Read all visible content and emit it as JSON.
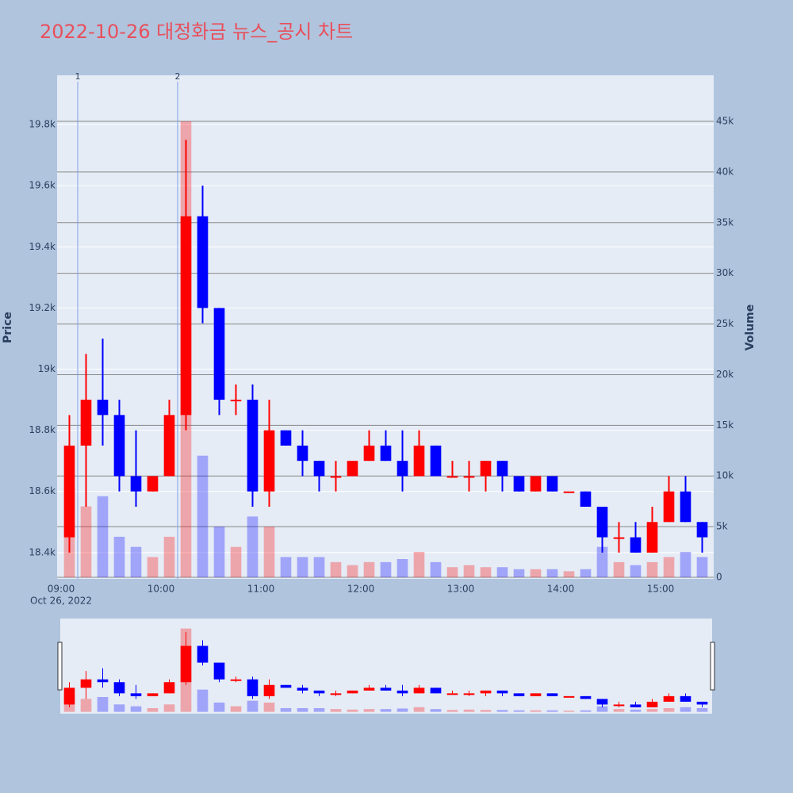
{
  "chart_data": {
    "type": "candlestick",
    "title": "2022-10-26 대정화금 뉴스_공시 차트",
    "x": [
      "09:00",
      "09:10",
      "09:20",
      "09:30",
      "09:40",
      "09:50",
      "10:00",
      "10:10",
      "10:20",
      "10:30",
      "10:40",
      "10:50",
      "11:00",
      "11:10",
      "11:20",
      "11:30",
      "11:40",
      "11:50",
      "12:00",
      "12:10",
      "12:20",
      "12:30",
      "12:40",
      "12:50",
      "13:00",
      "13:10",
      "13:20",
      "13:30",
      "13:40",
      "13:50",
      "14:00",
      "14:10",
      "14:20",
      "14:30",
      "14:40",
      "14:50",
      "15:00",
      "15:10",
      "15:20"
    ],
    "open": [
      18450,
      18750,
      18900,
      18850,
      18650,
      18600,
      18650,
      18850,
      19500,
      19200,
      18900,
      18900,
      18600,
      18800,
      18750,
      18700,
      18650,
      18650,
      18700,
      18750,
      18700,
      18650,
      18750,
      18650,
      18650,
      18650,
      18700,
      18650,
      18600,
      18650,
      18600,
      18600,
      18550,
      18450,
      18450,
      18400,
      18500,
      18600,
      18500
    ],
    "high": [
      18850,
      19050,
      19100,
      18900,
      18800,
      18650,
      18900,
      19750,
      19600,
      19200,
      18950,
      18950,
      18900,
      18800,
      18800,
      18700,
      18700,
      18700,
      18800,
      18800,
      18800,
      18800,
      18750,
      18700,
      18700,
      18700,
      18700,
      18650,
      18650,
      18650,
      18600,
      18600,
      18550,
      18500,
      18500,
      18550,
      18650,
      18650,
      18500
    ],
    "low": [
      18400,
      18550,
      18750,
      18600,
      18550,
      18600,
      18650,
      18800,
      19150,
      18850,
      18850,
      18550,
      18550,
      18750,
      18650,
      18600,
      18600,
      18650,
      18700,
      18700,
      18600,
      18650,
      18650,
      18650,
      18600,
      18600,
      18600,
      18600,
      18600,
      18600,
      18600,
      18550,
      18400,
      18400,
      18400,
      18400,
      18500,
      18500,
      18400
    ],
    "close": [
      18750,
      18900,
      18850,
      18650,
      18600,
      18650,
      18850,
      19500,
      19200,
      18900,
      18900,
      18600,
      18800,
      18750,
      18700,
      18650,
      18650,
      18700,
      18750,
      18700,
      18650,
      18750,
      18650,
      18650,
      18650,
      18700,
      18650,
      18600,
      18650,
      18600,
      18600,
      18550,
      18450,
      18450,
      18400,
      18500,
      18600,
      18500,
      18450
    ],
    "volume": [
      9000,
      7000,
      8000,
      4000,
      3000,
      2000,
      4000,
      45000,
      12000,
      5000,
      3000,
      6000,
      5000,
      2000,
      2000,
      2000,
      1500,
      1200,
      1500,
      1500,
      1800,
      2500,
      1500,
      1000,
      1200,
      1000,
      1000,
      800,
      800,
      800,
      600,
      800,
      3000,
      1500,
      1200,
      1500,
      2000,
      2500,
      2000
    ],
    "increasing_color": "#ff0000",
    "decreasing_color": "#0000ff",
    "xlim": [
      "09:00",
      "15:30"
    ],
    "xticks": [
      "09:00",
      "10:00",
      "11:00",
      "12:00",
      "13:00",
      "14:00",
      "15:00"
    ],
    "x_date_label": "Oct 26, 2022",
    "ylabel": "Price",
    "y2label": "Volume",
    "ylim": [
      18314,
      19961
    ],
    "yticks": [
      {
        "value": 18400,
        "label": "18.4k"
      },
      {
        "value": 18600,
        "label": "18.6k"
      },
      {
        "value": 18800,
        "label": "18.8k"
      },
      {
        "value": 19000,
        "label": "19k"
      },
      {
        "value": 19200,
        "label": "19.2k"
      },
      {
        "value": 19400,
        "label": "19.4k"
      },
      {
        "value": 19600,
        "label": "19.6k"
      },
      {
        "value": 19800,
        "label": "19.8k"
      }
    ],
    "y2lim": [
      -156,
      49540
    ],
    "y2ticks": [
      0,
      {
        "value": 5000,
        "label": "5k"
      },
      {
        "value": 10000,
        "label": "10k"
      },
      {
        "value": 15000,
        "label": "15k"
      },
      {
        "value": 20000,
        "label": "20k"
      },
      {
        "value": 25000,
        "label": "25k"
      },
      {
        "value": 30000,
        "label": "30k"
      },
      {
        "value": 35000,
        "label": "35k"
      },
      {
        "value": 40000,
        "label": "40k"
      },
      {
        "value": 45000,
        "label": "45k"
      }
    ],
    "annotations": [
      {
        "x": "09:10",
        "label": "1"
      },
      {
        "x": "10:10",
        "label": "2"
      }
    ]
  }
}
